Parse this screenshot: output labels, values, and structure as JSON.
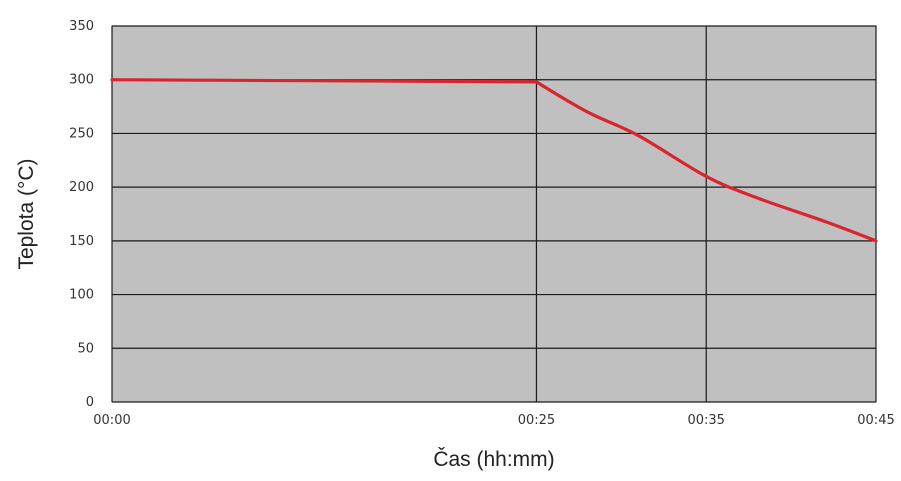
{
  "chart_data": {
    "type": "line",
    "title": "",
    "xlabel": "Čas (hh:mm)",
    "ylabel": "Teplota (°C)",
    "x_ticks": [
      "00:00",
      "00:25",
      "00:35",
      "00:45"
    ],
    "y_ticks": [
      "0",
      "50",
      "100",
      "150",
      "200",
      "250",
      "300",
      "350"
    ],
    "ylim": [
      0,
      350
    ],
    "grid": true,
    "colors": {
      "plot_background": "#c0c0c0",
      "grid": "#1a1a1a",
      "line": "#d9262e"
    },
    "series": [
      {
        "x": [
          "00:00",
          "00:25",
          "00:28",
          "00:31",
          "00:35",
          "00:38",
          "00:42",
          "00:45"
        ],
        "y": [
          300,
          298,
          270,
          248,
          210,
          190,
          168,
          150
        ]
      }
    ]
  }
}
